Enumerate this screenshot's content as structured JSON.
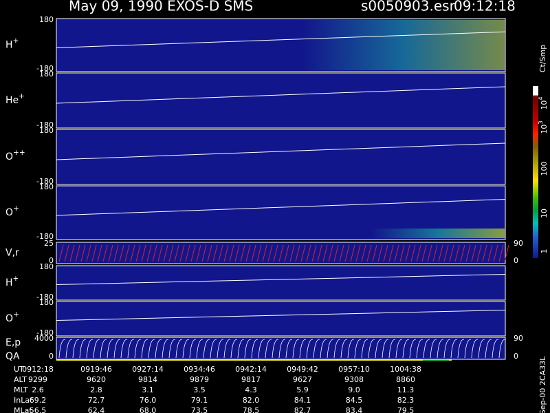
{
  "header": {
    "title": "May 09, 1990   EXOS-D SMS",
    "file": "s0050903.esr",
    "time": "09:12:18"
  },
  "panels": [
    {
      "label": {
        "base": "H",
        "sup": "+"
      },
      "left_ticks": [
        "180",
        "-180"
      ],
      "right_ticks": []
    },
    {
      "label": {
        "base": "He",
        "sup": "+"
      },
      "left_ticks": [
        "180",
        "-180"
      ],
      "right_ticks": []
    },
    {
      "label": {
        "base": "O",
        "sup": "++"
      },
      "left_ticks": [
        "180",
        "-180"
      ],
      "right_ticks": []
    },
    {
      "label": {
        "base": "O",
        "sup": "+"
      },
      "left_ticks": [
        "180",
        "-180"
      ],
      "right_ticks": []
    },
    {
      "label": {
        "base": "V,r",
        "sup": ""
      },
      "left_ticks": [
        "25",
        "0"
      ],
      "right_ticks": [
        "90",
        "0"
      ]
    },
    {
      "label": {
        "base": "H",
        "sup": "+"
      },
      "left_ticks": [
        "180",
        "-180"
      ],
      "right_ticks": []
    },
    {
      "label": {
        "base": "O",
        "sup": "+"
      },
      "left_ticks": [
        "180",
        "-180"
      ],
      "right_ticks": []
    },
    {
      "label": {
        "base": "E,p",
        "sup": ""
      },
      "label2": "QA",
      "left_ticks": [
        "4000",
        "0"
      ],
      "right_ticks": [
        "90",
        "0"
      ]
    }
  ],
  "colorbar": {
    "unit": "Ct/Smp",
    "ticks": [
      {
        "base": "10",
        "sup": "4"
      },
      {
        "base": "10",
        "sup": "3"
      },
      {
        "base": "100",
        "sup": ""
      },
      {
        "base": "10",
        "sup": ""
      },
      {
        "base": "1",
        "sup": ""
      }
    ]
  },
  "footer_id": "Sep-00  2CA33L",
  "table": {
    "row_labels": [
      "UT",
      "ALT",
      "MLT",
      "InLat",
      "MLat"
    ],
    "rows": [
      [
        "0912:18",
        "0919:46",
        "0927:14",
        "0934:46",
        "0942:14",
        "0949:42",
        "0957:10",
        "1004:38"
      ],
      [
        "9299",
        "9620",
        "9814",
        "9879",
        "9817",
        "9627",
        "9308",
        "8860"
      ],
      [
        "2.6",
        "2.8",
        "3.1",
        "3.5",
        "4.3",
        "5.9",
        "9.0",
        "11.3"
      ],
      [
        "69.2",
        "72.7",
        "76.0",
        "79.1",
        "82.0",
        "84.1",
        "84.5",
        "82.3"
      ],
      [
        "56.5",
        "62.4",
        "68.0",
        "73.5",
        "78.5",
        "82.7",
        "83.4",
        "79.5"
      ]
    ]
  }
}
